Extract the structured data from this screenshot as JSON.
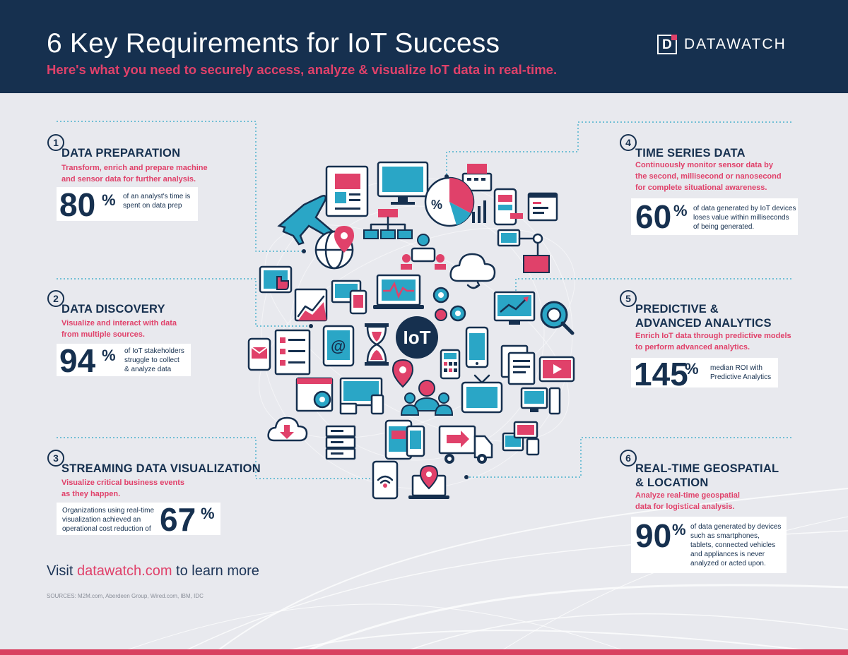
{
  "header": {
    "title": "6 Key Requirements for IoT Success",
    "subtitle": "Here's what you need to securely access, analyze & visualize IoT data in real-time.",
    "logo_text": "DATAWATCH",
    "logo_mark": "D"
  },
  "sections": [
    {
      "number": "1",
      "title": "DATA PREPARATION",
      "desc_lines": [
        "Transform, enrich and prepare machine",
        "and sensor data for further analysis."
      ],
      "stat_value": "80",
      "stat_unit": "%",
      "stat_lines": [
        "of an analyst's time is",
        "spent on data prep"
      ]
    },
    {
      "number": "2",
      "title": "DATA DISCOVERY",
      "desc_lines": [
        "Visualize and interact with data",
        "from multiple sources."
      ],
      "stat_value": "94",
      "stat_unit": "%",
      "stat_lines": [
        "of IoT stakeholders",
        "struggle to collect",
        "& analyze data"
      ]
    },
    {
      "number": "3",
      "title": "STREAMING DATA VISUALIZATION",
      "desc_lines": [
        "Visualize critical business events",
        "as they happen."
      ],
      "stat_value": "67",
      "stat_unit": "%",
      "stat_lines": [
        "Organizations using real-time",
        "visualization achieved an",
        "operational cost reduction of"
      ]
    },
    {
      "number": "4",
      "title": "TIME SERIES DATA",
      "desc_lines": [
        "Continuously monitor sensor data by",
        "the second, millisecond or nanosecond",
        "for complete situational awareness."
      ],
      "stat_value": "60",
      "stat_unit": "%",
      "stat_lines": [
        "of data generated by IoT devices",
        "loses value within milliseconds",
        "of being generated."
      ]
    },
    {
      "number": "5",
      "title_lines": [
        "PREDICTIVE &",
        "ADVANCED ANALYTICS"
      ],
      "desc_lines": [
        "Enrich IoT data through predictive models",
        "to perform advanced analytics."
      ],
      "stat_value": "145",
      "stat_unit": "%",
      "stat_lines": [
        "median ROI with",
        "Predictive Analytics"
      ]
    },
    {
      "number": "6",
      "title_lines": [
        "REAL-TIME GEOSPATIAL",
        "& LOCATION"
      ],
      "desc_lines": [
        "Analyze real-time geospatial",
        "data for logistical analysis."
      ],
      "stat_value": "90",
      "stat_unit": "%",
      "stat_lines": [
        "of data generated by devices",
        "such as smartphones,",
        "tablets, connected vehicles",
        "and appliances is never",
        "analyzed or acted upon."
      ]
    }
  ],
  "center_label": "IoT",
  "footer": {
    "visit_prefix": "Visit ",
    "visit_link": "datawatch.com",
    "visit_suffix": " to learn more",
    "sources": "SOURCES:  M2M.com, Aberdeen Group, Wired.com, IBM, IDC"
  },
  "colors": {
    "navy": "#16304f",
    "pink": "#e0416a",
    "teal": "#2aa6c6",
    "background": "#e8e9ee"
  },
  "icons": [
    "airplane-icon",
    "newspaper-icon",
    "monitor-icon",
    "cash-register-icon",
    "pie-chart-icon",
    "bar-chart-icon",
    "smartphone-chart-icon",
    "code-window-icon",
    "globe-pin-icon",
    "flowchart-icon",
    "meeting-icon",
    "network-icon",
    "cloud-sync-icon",
    "touch-tablet-icon",
    "line-chart-icon",
    "devices-sync-icon",
    "laptop-pulse-icon",
    "gears-icon",
    "trend-monitor-icon",
    "gear-search-icon",
    "mail-phone-icon",
    "checklist-icon",
    "at-tablet-icon",
    "hourglass-icon",
    "location-pin-icon",
    "calculator-icon",
    "phone-icon",
    "documents-icon",
    "video-player-icon",
    "settings-browser-icon",
    "desktop-laptop-icon",
    "team-icon",
    "tv-icon",
    "desktop-tower-icon",
    "cloud-download-icon",
    "server-icon",
    "tablet-phone-icon",
    "truck-icon",
    "screens-sync-icon",
    "wifi-phone-icon",
    "laptop-location-icon"
  ]
}
